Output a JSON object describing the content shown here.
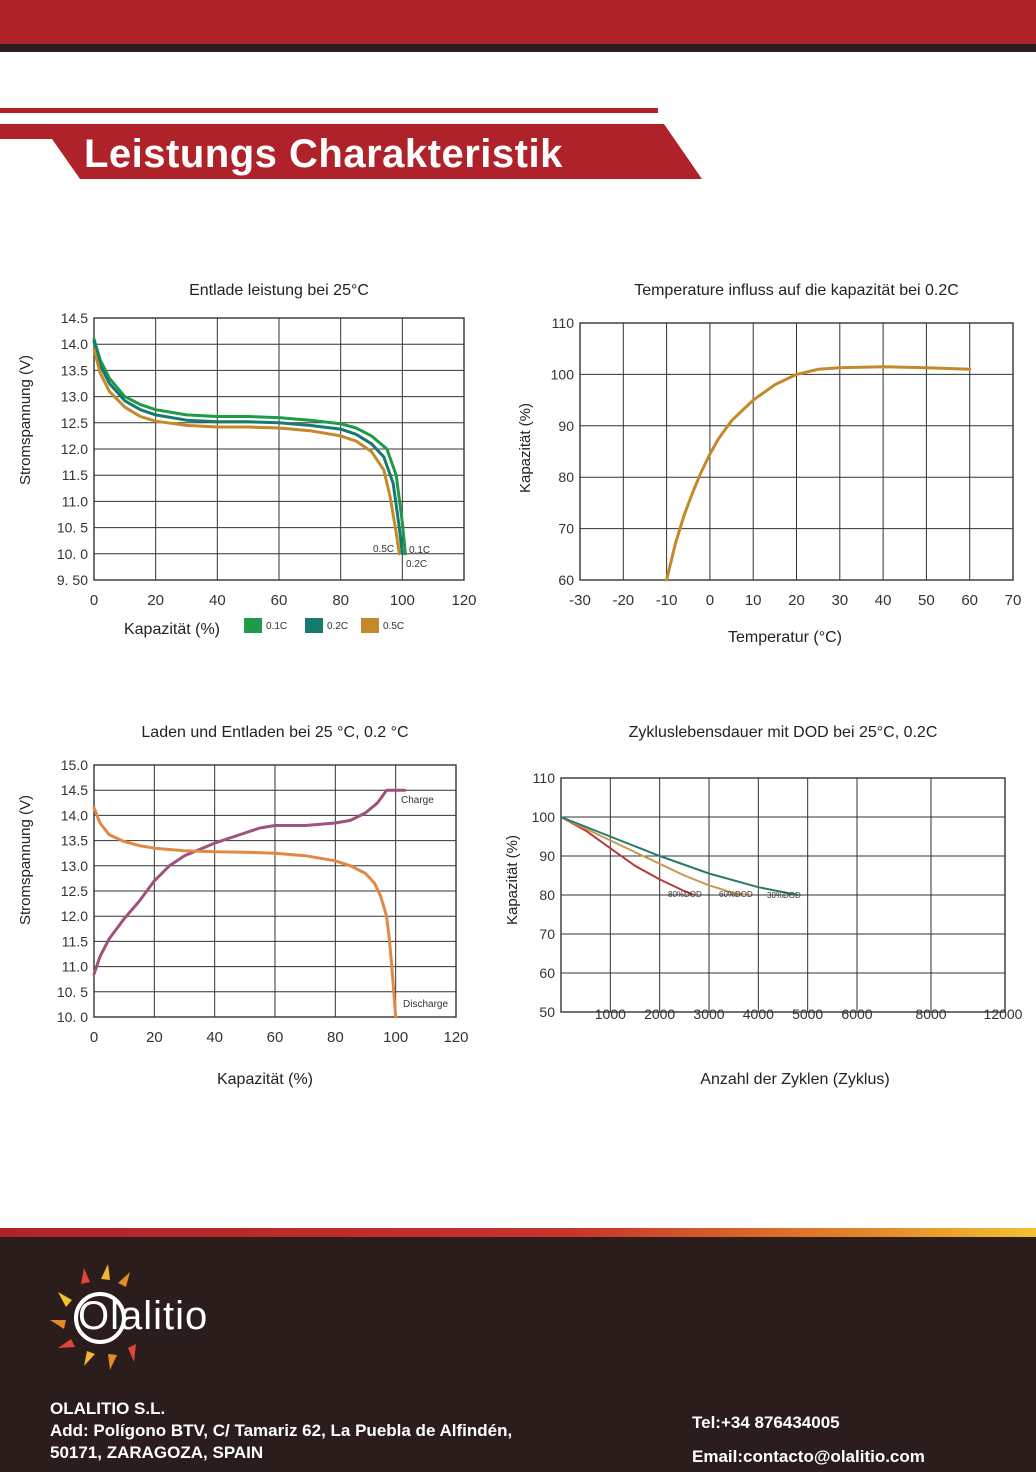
{
  "header": {
    "title": "Leistungs Charakteristik"
  },
  "colors": {
    "brand_red": "#b0222a",
    "dark": "#2a1d1b",
    "c01": "#1f9a48",
    "c02": "#177a6e",
    "c05": "#c4892a",
    "charge": "#a0527e",
    "discharge": "#e08846",
    "dod80": "#b83a3a",
    "dod60": "#c79a52",
    "dod30": "#2a7a6a"
  },
  "chart_data": [
    {
      "type": "line",
      "title": "Entlade leistung bei 25°C",
      "xlabel": "Kapazität (%)",
      "ylabel": "Stromspannung (V)",
      "xlim": [
        0,
        120
      ],
      "ylim": [
        9.5,
        14.5
      ],
      "x_ticks": [
        "0",
        "20",
        "40",
        "60",
        "80",
        "100",
        "120"
      ],
      "y_ticks": [
        "9. 50",
        "10. 0",
        "10. 5",
        "11.0",
        "11.5",
        "12.0",
        "12.5",
        "13.0",
        "13.5",
        "14.0",
        "14.5"
      ],
      "grid": true,
      "legend": "bottom",
      "series": [
        {
          "name": "0.1C",
          "end_label": "0.1C",
          "color": "#1f9a48",
          "x": [
            0,
            2,
            5,
            10,
            15,
            20,
            30,
            40,
            50,
            60,
            70,
            80,
            85,
            90,
            95,
            98,
            100,
            101
          ],
          "y": [
            14.1,
            13.7,
            13.35,
            13.0,
            12.85,
            12.75,
            12.65,
            12.62,
            12.62,
            12.6,
            12.55,
            12.48,
            12.4,
            12.25,
            12.0,
            11.5,
            10.6,
            10.0
          ]
        },
        {
          "name": "0.2C",
          "end_label": "0.2C",
          "color": "#177a6e",
          "x": [
            0,
            2,
            5,
            10,
            15,
            20,
            30,
            40,
            50,
            60,
            70,
            80,
            85,
            90,
            94,
            97,
            99,
            100
          ],
          "y": [
            14.05,
            13.6,
            13.25,
            12.92,
            12.75,
            12.65,
            12.55,
            12.52,
            12.52,
            12.5,
            12.45,
            12.38,
            12.28,
            12.1,
            11.85,
            11.35,
            10.5,
            10.0
          ]
        },
        {
          "name": "0.5C",
          "end_label": "0.5C",
          "color": "#c4892a",
          "x": [
            0,
            2,
            5,
            10,
            15,
            20,
            30,
            40,
            50,
            60,
            70,
            80,
            85,
            90,
            94,
            96,
            98,
            99
          ],
          "y": [
            13.9,
            13.45,
            13.1,
            12.8,
            12.62,
            12.53,
            12.45,
            12.42,
            12.42,
            12.4,
            12.35,
            12.25,
            12.15,
            11.95,
            11.6,
            11.1,
            10.4,
            10.0
          ]
        }
      ]
    },
    {
      "type": "line",
      "title": "Temperature influss auf die kapazität bei 0.2C",
      "xlabel": "Temperatur (°C)",
      "ylabel": "Kapazität (%)",
      "xlim": [
        -30,
        70
      ],
      "ylim": [
        60,
        110
      ],
      "x_ticks": [
        "-30",
        "-20",
        "-10",
        "0",
        "10",
        "20",
        "30",
        "40",
        "50",
        "60",
        "70"
      ],
      "y_ticks": [
        "60",
        "70",
        "80",
        "90",
        "100",
        "110"
      ],
      "grid": true,
      "series": [
        {
          "color": "#c4892a",
          "x": [
            -10,
            -8,
            -6,
            -4,
            -2,
            0,
            2,
            5,
            10,
            15,
            20,
            25,
            30,
            40,
            50,
            60
          ],
          "y": [
            60,
            67,
            72.5,
            77,
            81,
            84.5,
            87.5,
            91,
            95,
            98,
            100,
            101,
            101.3,
            101.5,
            101.3,
            101
          ]
        }
      ]
    },
    {
      "type": "line",
      "title": "Laden und Entladen bei 25 °C, 0.2 °C",
      "xlabel": "Kapazität (%)",
      "ylabel": "Stromspannung (V)",
      "xlim": [
        0,
        120
      ],
      "ylim": [
        10,
        15
      ],
      "x_ticks": [
        "0",
        "20",
        "40",
        "60",
        "80",
        "100",
        "120"
      ],
      "y_ticks": [
        "10. 0",
        "10. 5",
        "11.0",
        "11.5",
        "12.0",
        "12.5",
        "13.0",
        "13.5",
        "14.0",
        "14.5",
        "15.0"
      ],
      "grid": true,
      "series": [
        {
          "name": "Charge",
          "color": "#a0527e",
          "x": [
            0,
            2,
            5,
            10,
            15,
            20,
            25,
            30,
            40,
            50,
            55,
            60,
            70,
            80,
            85,
            90,
            94,
            97,
            100,
            103
          ],
          "y": [
            10.85,
            11.2,
            11.55,
            11.95,
            12.3,
            12.7,
            13.0,
            13.2,
            13.45,
            13.65,
            13.75,
            13.8,
            13.8,
            13.85,
            13.9,
            14.05,
            14.25,
            14.5,
            14.5,
            14.5
          ]
        },
        {
          "name": "Discharge",
          "color": "#e08846",
          "x": [
            0,
            2,
            5,
            10,
            15,
            20,
            30,
            40,
            50,
            60,
            70,
            80,
            85,
            90,
            93,
            95,
            97,
            98,
            99,
            100
          ],
          "y": [
            14.15,
            13.85,
            13.62,
            13.48,
            13.4,
            13.35,
            13.3,
            13.28,
            13.27,
            13.25,
            13.2,
            13.1,
            13.0,
            12.85,
            12.65,
            12.4,
            12.0,
            11.5,
            10.8,
            10.0
          ]
        }
      ]
    },
    {
      "type": "line",
      "title": "Zykluslebensdauer mit DOD bei 25°C, 0.2C",
      "xlabel": "Anzahl der Zyklen (Zyklus)",
      "ylabel": "Kapazität (%)",
      "ylim": [
        50,
        110
      ],
      "x_ticks": [
        "1000",
        "2000",
        "3000",
        "4000",
        "5000",
        "6000",
        "8000",
        "12000"
      ],
      "x_tick_positions": [
        1,
        2,
        3,
        4,
        5,
        6,
        7.5,
        9
      ],
      "y_ticks": [
        "50",
        "60",
        "70",
        "80",
        "90",
        "100",
        "110"
      ],
      "grid": true,
      "series": [
        {
          "name": "80%DOD",
          "color": "#b83a3a",
          "x": [
            0,
            500,
            1000,
            1500,
            2000,
            2500,
            2700
          ],
          "y": [
            100,
            96.5,
            92,
            87.5,
            84,
            81,
            80
          ]
        },
        {
          "name": "60%DOD",
          "color": "#c79a52",
          "x": [
            0,
            500,
            1000,
            1500,
            2000,
            2500,
            3000,
            3500,
            3800
          ],
          "y": [
            100,
            97,
            94,
            91,
            88,
            85,
            82.5,
            80.5,
            80
          ]
        },
        {
          "name": "30%DOD",
          "color": "#2a7a6a",
          "x": [
            0,
            1000,
            2000,
            3000,
            4000,
            4800
          ],
          "y": [
            100,
            95,
            90,
            85.5,
            82,
            80
          ]
        }
      ]
    }
  ],
  "footer": {
    "brand": "Olalitio",
    "company_name": "OLALITIO S.L.",
    "address_line1": "Add: Polígono BTV, C/ Tamariz 62, La Puebla de Alfindén,",
    "address_line2": "50171, ZARAGOZA, SPAIN",
    "tel": "Tel:+34 876434005",
    "email": "Email:contacto@olalitio.com"
  }
}
